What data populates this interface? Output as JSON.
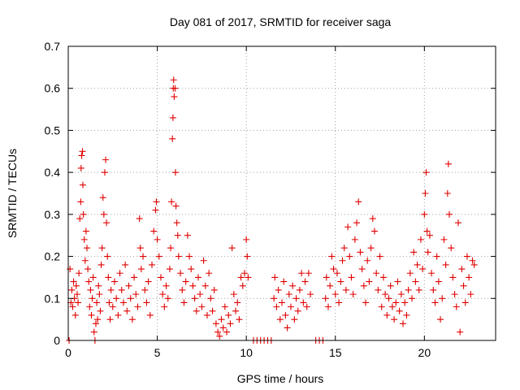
{
  "chart_data": {
    "type": "scatter",
    "title": "Day 081 of 2017, SRMTID for receiver saga",
    "xlabel": "GPS time / hours",
    "ylabel": "SRMTID / TECUs",
    "xlim": [
      0,
      24
    ],
    "ylim": [
      0,
      0.7
    ],
    "xticks": [
      0,
      5,
      10,
      15,
      20
    ],
    "xtick_labels": [
      "0",
      "5",
      "10",
      "15",
      "20"
    ],
    "yticks": [
      0,
      0.1,
      0.2,
      0.3,
      0.4,
      0.5,
      0.6,
      0.7
    ],
    "ytick_labels": [
      "0",
      "0.1",
      "0.2",
      "0.3",
      "0.4",
      "0.5",
      "0.6",
      "0.7"
    ],
    "grid": true,
    "marker": "+",
    "point_color": "#e00000",
    "series": [
      {
        "name": "SRMTID",
        "points": [
          [
            0.05,
            0.0
          ],
          [
            0.1,
            0.17
          ],
          [
            0.15,
            0.09
          ],
          [
            0.2,
            0.12
          ],
          [
            0.25,
            0.08
          ],
          [
            0.3,
            0.14
          ],
          [
            0.35,
            0.1
          ],
          [
            0.4,
            0.06
          ],
          [
            0.45,
            0.13
          ],
          [
            0.5,
            0.11
          ],
          [
            0.55,
            0.09
          ],
          [
            0.6,
            0.16
          ],
          [
            0.65,
            0.29
          ],
          [
            0.7,
            0.33
          ],
          [
            0.72,
            0.41
          ],
          [
            0.75,
            0.44
          ],
          [
            0.8,
            0.45
          ],
          [
            0.82,
            0.37
          ],
          [
            0.85,
            0.3
          ],
          [
            0.9,
            0.24
          ],
          [
            0.95,
            0.19
          ],
          [
            1.0,
            0.26
          ],
          [
            1.05,
            0.22
          ],
          [
            1.1,
            0.17
          ],
          [
            1.15,
            0.14
          ],
          [
            1.2,
            0.08
          ],
          [
            1.25,
            0.12
          ],
          [
            1.3,
            0.06
          ],
          [
            1.35,
            0.1
          ],
          [
            1.4,
            0.15
          ],
          [
            1.45,
            0.02
          ],
          [
            1.5,
            0.0
          ],
          [
            1.55,
            0.04
          ],
          [
            1.6,
            0.09
          ],
          [
            1.65,
            0.05
          ],
          [
            1.7,
            0.13
          ],
          [
            1.75,
            0.11
          ],
          [
            1.8,
            0.07
          ],
          [
            1.85,
            0.18
          ],
          [
            1.9,
            0.22
          ],
          [
            1.95,
            0.34
          ],
          [
            2.0,
            0.3
          ],
          [
            2.05,
            0.4
          ],
          [
            2.1,
            0.43
          ],
          [
            2.15,
            0.28
          ],
          [
            2.2,
            0.2
          ],
          [
            2.25,
            0.15
          ],
          [
            2.3,
            0.09
          ],
          [
            2.35,
            0.05
          ],
          [
            2.4,
            0.12
          ],
          [
            2.5,
            0.08
          ],
          [
            2.6,
            0.14
          ],
          [
            2.7,
            0.1
          ],
          [
            2.8,
            0.06
          ],
          [
            2.9,
            0.16
          ],
          [
            3.0,
            0.12
          ],
          [
            3.1,
            0.09
          ],
          [
            3.2,
            0.18
          ],
          [
            3.3,
            0.07
          ],
          [
            3.4,
            0.13
          ],
          [
            3.5,
            0.1
          ],
          [
            3.6,
            0.05
          ],
          [
            3.7,
            0.15
          ],
          [
            3.8,
            0.11
          ],
          [
            3.9,
            0.08
          ],
          [
            4.0,
            0.29
          ],
          [
            4.05,
            0.22
          ],
          [
            4.1,
            0.17
          ],
          [
            4.2,
            0.2
          ],
          [
            4.3,
            0.12
          ],
          [
            4.4,
            0.09
          ],
          [
            4.5,
            0.14
          ],
          [
            4.6,
            0.06
          ],
          [
            4.7,
            0.18
          ],
          [
            4.8,
            0.26
          ],
          [
            4.9,
            0.31
          ],
          [
            4.95,
            0.33
          ],
          [
            5.0,
            0.24
          ],
          [
            5.1,
            0.2
          ],
          [
            5.2,
            0.15
          ],
          [
            5.3,
            0.11
          ],
          [
            5.4,
            0.08
          ],
          [
            5.5,
            0.13
          ],
          [
            5.6,
            0.1
          ],
          [
            5.7,
            0.17
          ],
          [
            5.75,
            0.22
          ],
          [
            5.8,
            0.33
          ],
          [
            5.85,
            0.48
          ],
          [
            5.88,
            0.53
          ],
          [
            5.9,
            0.6
          ],
          [
            5.92,
            0.62
          ],
          [
            5.95,
            0.58
          ],
          [
            6.0,
            0.6
          ],
          [
            6.02,
            0.4
          ],
          [
            6.05,
            0.32
          ],
          [
            6.1,
            0.28
          ],
          [
            6.15,
            0.25
          ],
          [
            6.2,
            0.2
          ],
          [
            6.3,
            0.16
          ],
          [
            6.4,
            0.12
          ],
          [
            6.5,
            0.09
          ],
          [
            6.6,
            0.14
          ],
          [
            6.7,
            0.25
          ],
          [
            6.8,
            0.2
          ],
          [
            6.9,
            0.17
          ],
          [
            7.0,
            0.13
          ],
          [
            7.1,
            0.1
          ],
          [
            7.2,
            0.07
          ],
          [
            7.3,
            0.15
          ],
          [
            7.4,
            0.11
          ],
          [
            7.5,
            0.08
          ],
          [
            7.6,
            0.19
          ],
          [
            7.7,
            0.13
          ],
          [
            7.8,
            0.06
          ],
          [
            7.9,
            0.16
          ],
          [
            8.0,
            0.1
          ],
          [
            8.1,
            0.07
          ],
          [
            8.2,
            0.12
          ],
          [
            8.3,
            0.04
          ],
          [
            8.4,
            0.02
          ],
          [
            8.5,
            0.01
          ],
          [
            8.6,
            0.05
          ],
          [
            8.7,
            0.03
          ],
          [
            8.8,
            0.08
          ],
          [
            8.9,
            0.02
          ],
          [
            9.0,
            0.06
          ],
          [
            9.1,
            0.04
          ],
          [
            9.2,
            0.22
          ],
          [
            9.3,
            0.11
          ],
          [
            9.4,
            0.07
          ],
          [
            9.5,
            0.09
          ],
          [
            9.6,
            0.05
          ],
          [
            9.7,
            0.15
          ],
          [
            9.8,
            0.13
          ],
          [
            9.9,
            0.16
          ],
          [
            10.0,
            0.24
          ],
          [
            10.05,
            0.2
          ],
          [
            10.1,
            0.15
          ],
          [
            10.4,
            0.0
          ],
          [
            10.6,
            0.0
          ],
          [
            10.8,
            0.0
          ],
          [
            11.0,
            0.0
          ],
          [
            11.2,
            0.0
          ],
          [
            11.4,
            0.0
          ],
          [
            11.55,
            0.1
          ],
          [
            11.6,
            0.15
          ],
          [
            11.7,
            0.08
          ],
          [
            11.8,
            0.12
          ],
          [
            11.9,
            0.05
          ],
          [
            12.0,
            0.09
          ],
          [
            12.1,
            0.14
          ],
          [
            12.2,
            0.06
          ],
          [
            12.3,
            0.03
          ],
          [
            12.4,
            0.11
          ],
          [
            12.5,
            0.08
          ],
          [
            12.6,
            0.13
          ],
          [
            12.7,
            0.05
          ],
          [
            12.8,
            0.1
          ],
          [
            12.9,
            0.07
          ],
          [
            13.0,
            0.12
          ],
          [
            13.1,
            0.16
          ],
          [
            13.2,
            0.09
          ],
          [
            13.3,
            0.14
          ],
          [
            13.4,
            0.08
          ],
          [
            13.5,
            0.16
          ],
          [
            13.6,
            0.11
          ],
          [
            13.9,
            0.0
          ],
          [
            14.1,
            0.0
          ],
          [
            14.3,
            0.0
          ],
          [
            14.45,
            0.1
          ],
          [
            14.5,
            0.15
          ],
          [
            14.6,
            0.08
          ],
          [
            14.7,
            0.13
          ],
          [
            14.8,
            0.2
          ],
          [
            14.9,
            0.17
          ],
          [
            15.0,
            0.11
          ],
          [
            15.1,
            0.16
          ],
          [
            15.2,
            0.09
          ],
          [
            15.3,
            0.14
          ],
          [
            15.4,
            0.19
          ],
          [
            15.5,
            0.22
          ],
          [
            15.6,
            0.12
          ],
          [
            15.7,
            0.27
          ],
          [
            15.8,
            0.2
          ],
          [
            15.9,
            0.15
          ],
          [
            16.0,
            0.11
          ],
          [
            16.1,
            0.24
          ],
          [
            16.2,
            0.28
          ],
          [
            16.3,
            0.33
          ],
          [
            16.4,
            0.21
          ],
          [
            16.5,
            0.17
          ],
          [
            16.6,
            0.13
          ],
          [
            16.7,
            0.09
          ],
          [
            16.8,
            0.19
          ],
          [
            16.9,
            0.14
          ],
          [
            17.0,
            0.22
          ],
          [
            17.1,
            0.29
          ],
          [
            17.2,
            0.26
          ],
          [
            17.3,
            0.16
          ],
          [
            17.4,
            0.12
          ],
          [
            17.5,
            0.2
          ],
          [
            17.6,
            0.08
          ],
          [
            17.7,
            0.15
          ],
          [
            17.8,
            0.11
          ],
          [
            17.9,
            0.06
          ],
          [
            18.0,
            0.1
          ],
          [
            18.1,
            0.13
          ],
          [
            18.2,
            0.08
          ],
          [
            18.3,
            0.05
          ],
          [
            18.4,
            0.09
          ],
          [
            18.5,
            0.14
          ],
          [
            18.6,
            0.07
          ],
          [
            18.7,
            0.11
          ],
          [
            18.8,
            0.04
          ],
          [
            18.9,
            0.09
          ],
          [
            19.0,
            0.06
          ],
          [
            19.1,
            0.12
          ],
          [
            19.2,
            0.16
          ],
          [
            19.3,
            0.1
          ],
          [
            19.4,
            0.21
          ],
          [
            19.5,
            0.14
          ],
          [
            19.6,
            0.18
          ],
          [
            19.7,
            0.12
          ],
          [
            19.8,
            0.24
          ],
          [
            19.9,
            0.17
          ],
          [
            20.0,
            0.3
          ],
          [
            20.05,
            0.35
          ],
          [
            20.1,
            0.4
          ],
          [
            20.15,
            0.26
          ],
          [
            20.2,
            0.21
          ],
          [
            20.3,
            0.25
          ],
          [
            20.4,
            0.16
          ],
          [
            20.5,
            0.12
          ],
          [
            20.6,
            0.09
          ],
          [
            20.7,
            0.2
          ],
          [
            20.8,
            0.14
          ],
          [
            20.9,
            0.05
          ],
          [
            21.0,
            0.1
          ],
          [
            21.1,
            0.24
          ],
          [
            21.2,
            0.18
          ],
          [
            21.3,
            0.35
          ],
          [
            21.35,
            0.42
          ],
          [
            21.4,
            0.3
          ],
          [
            21.5,
            0.22
          ],
          [
            21.6,
            0.15
          ],
          [
            21.7,
            0.11
          ],
          [
            21.8,
            0.08
          ],
          [
            21.9,
            0.28
          ],
          [
            22.0,
            0.02
          ],
          [
            22.1,
            0.17
          ],
          [
            22.2,
            0.13
          ],
          [
            22.3,
            0.09
          ],
          [
            22.4,
            0.2
          ],
          [
            22.5,
            0.15
          ],
          [
            22.6,
            0.11
          ],
          [
            22.7,
            0.19
          ],
          [
            22.8,
            0.18
          ]
        ]
      }
    ]
  }
}
